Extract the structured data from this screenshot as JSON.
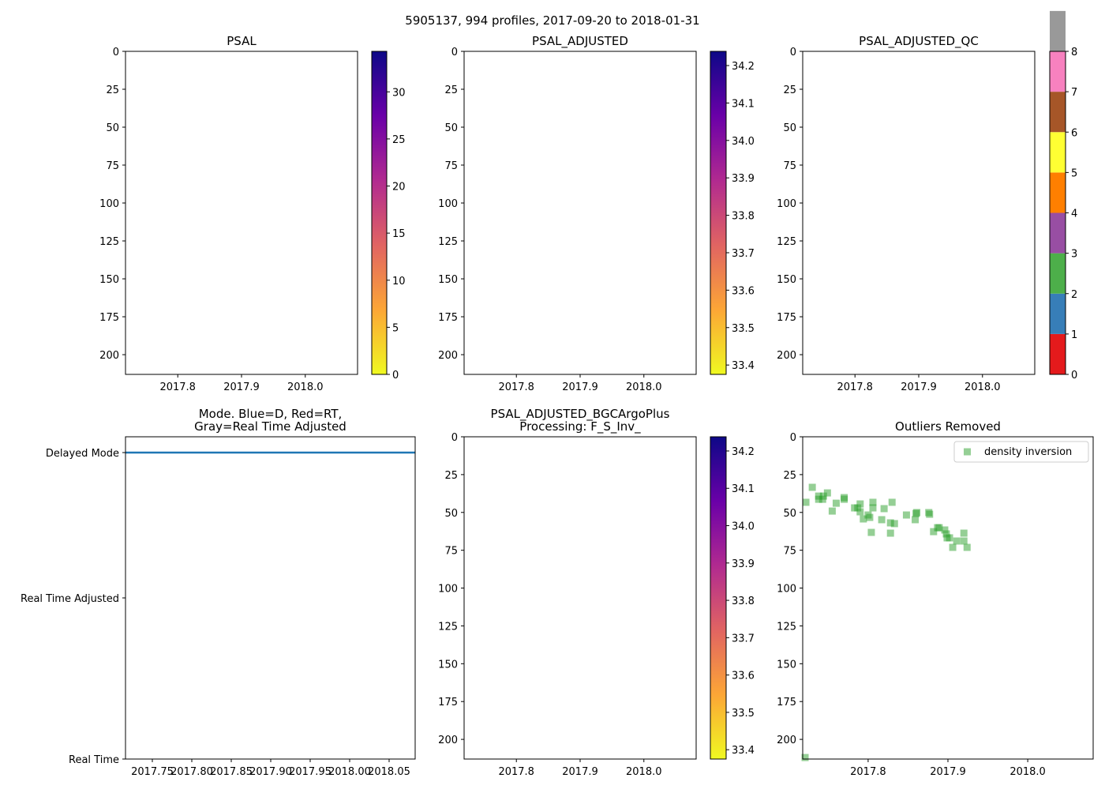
{
  "chart_data": {
    "title": "5905137, 994 profiles, 2017-09-20 to 2018-01-31",
    "panels": [
      {
        "id": "psal",
        "type": "heatmap",
        "title": "PSAL",
        "xlim": [
          2017.718,
          2018.082
        ],
        "xticks": [
          2017.8,
          2017.9,
          2018.0
        ],
        "xtick_labels": [
          "2017.8",
          "2017.9",
          "2018.0"
        ],
        "ylim": [
          213,
          0
        ],
        "yticks": [
          0,
          25,
          50,
          75,
          100,
          125,
          150,
          175,
          200
        ],
        "values": [],
        "colorbar": {
          "cmap": "plasma_r",
          "range": [
            0,
            34.3
          ],
          "ticks": [
            0,
            5,
            10,
            15,
            20,
            25,
            30
          ]
        }
      },
      {
        "id": "psal-adjusted",
        "type": "heatmap",
        "title": "PSAL_ADJUSTED",
        "xlim": [
          2017.718,
          2018.082
        ],
        "xticks": [
          2017.8,
          2017.9,
          2018.0
        ],
        "xtick_labels": [
          "2017.8",
          "2017.9",
          "2018.0"
        ],
        "ylim": [
          213,
          0
        ],
        "yticks": [
          0,
          25,
          50,
          75,
          100,
          125,
          150,
          175,
          200
        ],
        "values": [],
        "colorbar": {
          "cmap": "plasma_r",
          "range": [
            33.375,
            34.238
          ],
          "ticks": [
            33.4,
            33.5,
            33.6,
            33.7,
            33.8,
            33.9,
            34.0,
            34.1,
            34.2
          ]
        }
      },
      {
        "id": "psal-adjusted-qc",
        "type": "heatmap",
        "title": "PSAL_ADJUSTED_QC",
        "xlim": [
          2017.718,
          2018.082
        ],
        "xticks": [
          2017.8,
          2017.9,
          2018.0
        ],
        "xtick_labels": [
          "2017.8",
          "2017.9",
          "2018.0"
        ],
        "ylim": [
          213,
          0
        ],
        "yticks": [
          0,
          25,
          50,
          75,
          100,
          125,
          150,
          175,
          200
        ],
        "values": [],
        "colorbar": {
          "cmap": "discrete",
          "range": [
            0,
            8
          ],
          "ticks": [
            0,
            1,
            2,
            3,
            4,
            5,
            6,
            7,
            8
          ],
          "colors": [
            "#e41a1c",
            "#377eb8",
            "#4daf4a",
            "#984ea3",
            "#ff7f00",
            "#ffff33",
            "#a65628",
            "#f781bf",
            "#999999"
          ]
        }
      },
      {
        "id": "mode",
        "type": "line",
        "title": "Mode. Blue=D, Red=RT,\nGray=Real Time Adjusted",
        "xlim": [
          2017.716,
          2018.083
        ],
        "xticks": [
          2017.75,
          2017.8,
          2017.85,
          2017.9,
          2017.95,
          2018.0,
          2018.05
        ],
        "xtick_labels": [
          "2017.75",
          "2017.80",
          "2017.85",
          "2017.90",
          "2017.95",
          "2018.00",
          "2018.05"
        ],
        "ylim": [
          0,
          2
        ],
        "yticks": [
          2,
          1,
          0
        ],
        "ytick_labels": [
          "Delayed Mode",
          "Real Time Adjusted",
          "Real Time"
        ],
        "series": [
          {
            "name": "Delayed Mode",
            "color": "#1f77b4",
            "x": [
              2017.716,
              2018.083
            ],
            "y": [
              1.9,
              1.9
            ]
          }
        ]
      },
      {
        "id": "bgc-argo-plus",
        "type": "heatmap",
        "title": "PSAL_ADJUSTED_BGCArgoPlus\nProcessing: F_S_Inv_",
        "xlim": [
          2017.718,
          2018.082
        ],
        "xticks": [
          2017.8,
          2017.9,
          2018.0
        ],
        "xtick_labels": [
          "2017.8",
          "2017.9",
          "2018.0"
        ],
        "ylim": [
          213,
          0
        ],
        "yticks": [
          0,
          25,
          50,
          75,
          100,
          125,
          150,
          175,
          200
        ],
        "values": [],
        "colorbar": {
          "cmap": "plasma_r",
          "range": [
            33.375,
            34.238
          ],
          "ticks": [
            33.4,
            33.5,
            33.6,
            33.7,
            33.8,
            33.9,
            34.0,
            34.1,
            34.2
          ]
        }
      },
      {
        "id": "outliers",
        "type": "scatter",
        "title": "Outliers Removed",
        "xlim": [
          2017.718,
          2018.082
        ],
        "xticks": [
          2017.8,
          2017.9,
          2018.0
        ],
        "xtick_labels": [
          "2017.8",
          "2017.9",
          "2018.0"
        ],
        "ylim": [
          213,
          0
        ],
        "yticks": [
          0,
          25,
          50,
          75,
          100,
          125,
          150,
          175,
          200
        ],
        "legend": {
          "position": "top-right",
          "entries": [
            "density inversion"
          ]
        },
        "series": [
          {
            "name": "density inversion",
            "color": "#2ca02c",
            "marker": "square",
            "x": [
              2017.722,
              2017.73,
              2017.738,
              2017.738,
              2017.743,
              2017.744,
              2017.749,
              2017.755,
              2017.76,
              2017.77,
              2017.77,
              2017.783,
              2017.787,
              2017.79,
              2017.79,
              2017.794,
              2017.8,
              2017.804,
              2017.802,
              2017.806,
              2017.806,
              2017.817,
              2017.82,
              2017.828,
              2017.828,
              2017.833,
              2017.83,
              2017.848,
              2017.859,
              2017.86,
              2017.861,
              2017.876,
              2017.877,
              2017.882,
              2017.887,
              2017.889,
              2017.896,
              2017.898,
              2017.899,
              2017.902,
              2017.906,
              2017.911,
              2017.92,
              2017.92,
              2017.924,
              2017.721
            ],
            "y": [
              43.3,
              33.4,
              41.3,
              39.2,
              41.3,
              39.2,
              37.1,
              49.1,
              43.9,
              40.2,
              41.3,
              47.0,
              47.0,
              44.4,
              49.6,
              54.3,
              51.7,
              63.2,
              53.3,
              43.3,
              47.0,
              54.8,
              47.5,
              56.9,
              63.7,
              57.4,
              43.3,
              51.7,
              54.8,
              50.7,
              50.1,
              50.1,
              51.2,
              62.7,
              60.1,
              60.1,
              61.6,
              64.2,
              66.8,
              66.8,
              73.1,
              68.9,
              63.7,
              68.9,
              73.1,
              212
            ]
          }
        ]
      }
    ]
  }
}
